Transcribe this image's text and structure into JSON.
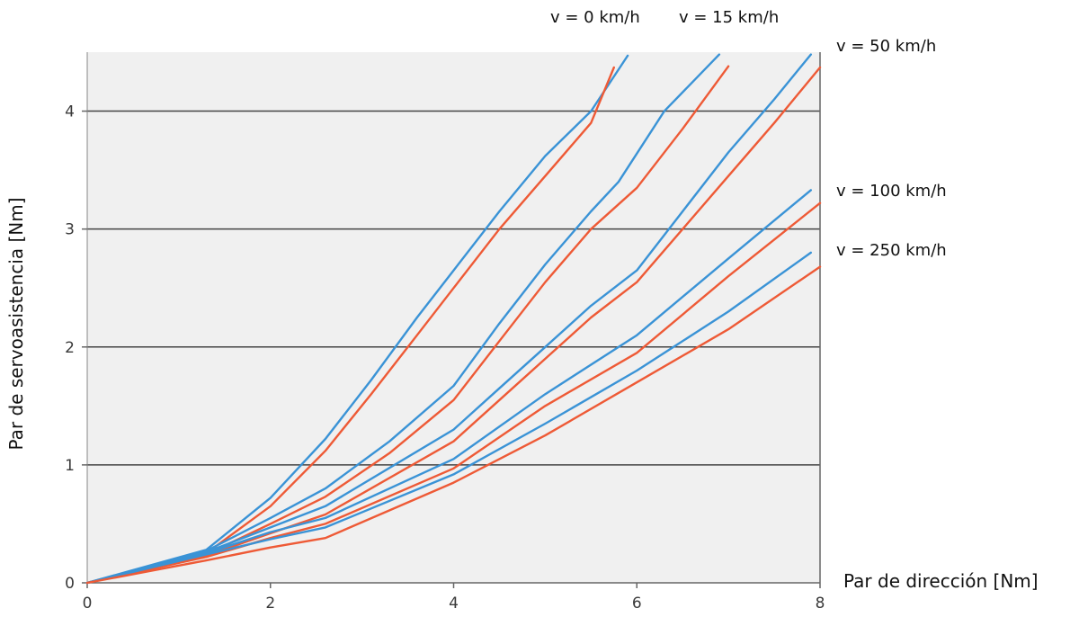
{
  "chart_data": {
    "type": "line",
    "title": "",
    "xlabel": "Par de dirección [Nm]",
    "ylabel": "Par de servoasistencia [Nm]",
    "xlim": [
      0,
      8
    ],
    "ylim": [
      0,
      4.5
    ],
    "x_ticks": [
      "0",
      "2",
      "4",
      "6",
      "8"
    ],
    "y_ticks": [
      "0",
      "1",
      "2",
      "3",
      "4"
    ],
    "grid": "horizontal",
    "background": "#f0f0f0",
    "colors": {
      "blue": "#3a93d6",
      "red": "#ee5a36",
      "grid": "#444444"
    },
    "series": [
      {
        "name": "v = 0 km/h",
        "color": "#3a93d6",
        "x": [
          0,
          1.3,
          2.0,
          2.6,
          3.1,
          3.6,
          4.0,
          4.5,
          5.0,
          5.5,
          5.9
        ],
        "y": [
          0,
          0.28,
          0.72,
          1.22,
          1.72,
          2.25,
          2.65,
          3.15,
          3.62,
          4.0,
          4.47
        ]
      },
      {
        "color": "#ee5a36",
        "x": [
          0,
          1.3,
          2.0,
          2.6,
          3.1,
          3.6,
          4.0,
          4.5,
          5.0,
          5.5,
          5.75
        ],
        "y": [
          0,
          0.25,
          0.65,
          1.12,
          1.6,
          2.1,
          2.5,
          3.0,
          3.45,
          3.9,
          4.37
        ]
      },
      {
        "name": "v = 15 km/h",
        "color": "#3a93d6",
        "x": [
          0,
          1.3,
          2.0,
          2.6,
          3.3,
          4.0,
          4.5,
          5.0,
          5.5,
          5.8,
          6.3,
          6.9
        ],
        "y": [
          0,
          0.27,
          0.55,
          0.8,
          1.2,
          1.67,
          2.2,
          2.7,
          3.15,
          3.4,
          4.0,
          4.48
        ]
      },
      {
        "color": "#ee5a36",
        "x": [
          0,
          1.3,
          2.0,
          2.6,
          3.3,
          4.0,
          4.5,
          5.0,
          5.5,
          6.0,
          6.5,
          7.0
        ],
        "y": [
          0,
          0.24,
          0.5,
          0.73,
          1.1,
          1.55,
          2.05,
          2.55,
          3.0,
          3.35,
          3.85,
          4.38
        ]
      },
      {
        "name": "v = 50 km/h",
        "color": "#3a93d6",
        "x": [
          0,
          1.3,
          2.0,
          2.6,
          4.0,
          4.5,
          5.0,
          5.5,
          6.0,
          6.5,
          7.0,
          7.5,
          7.9
        ],
        "y": [
          0,
          0.26,
          0.47,
          0.65,
          1.3,
          1.65,
          2.0,
          2.35,
          2.65,
          3.15,
          3.65,
          4.1,
          4.48
        ]
      },
      {
        "color": "#ee5a36",
        "x": [
          0,
          1.3,
          2.0,
          2.6,
          4.0,
          4.5,
          5.0,
          5.5,
          6.0,
          6.5,
          7.0,
          7.5,
          8.0
        ],
        "y": [
          0,
          0.23,
          0.42,
          0.58,
          1.2,
          1.55,
          1.9,
          2.25,
          2.55,
          3.0,
          3.45,
          3.9,
          4.37
        ]
      },
      {
        "name": "v = 100 km/h",
        "color": "#3a93d6",
        "x": [
          0,
          1.3,
          2.0,
          2.6,
          4.0,
          5.0,
          6.0,
          7.0,
          7.9
        ],
        "y": [
          0,
          0.25,
          0.43,
          0.55,
          1.05,
          1.6,
          2.1,
          2.75,
          3.33
        ]
      },
      {
        "color": "#ee5a36",
        "x": [
          0,
          1.3,
          2.0,
          2.6,
          4.0,
          5.0,
          6.0,
          7.0,
          8.0
        ],
        "y": [
          0,
          0.22,
          0.38,
          0.5,
          0.97,
          1.5,
          1.95,
          2.6,
          3.22
        ]
      },
      {
        "name": "v = 250 km/h",
        "color": "#3a93d6",
        "x": [
          0,
          1.3,
          2.0,
          2.6,
          4.0,
          5.0,
          6.0,
          7.0,
          7.9
        ],
        "y": [
          0,
          0.24,
          0.37,
          0.47,
          0.92,
          1.35,
          1.8,
          2.3,
          2.8
        ]
      },
      {
        "color": "#ee5a36",
        "x": [
          0,
          1.3,
          2.0,
          2.6,
          4.0,
          5.0,
          6.0,
          7.0,
          8.0
        ],
        "y": [
          0,
          0.19,
          0.3,
          0.38,
          0.85,
          1.25,
          1.7,
          2.15,
          2.68
        ]
      }
    ]
  }
}
